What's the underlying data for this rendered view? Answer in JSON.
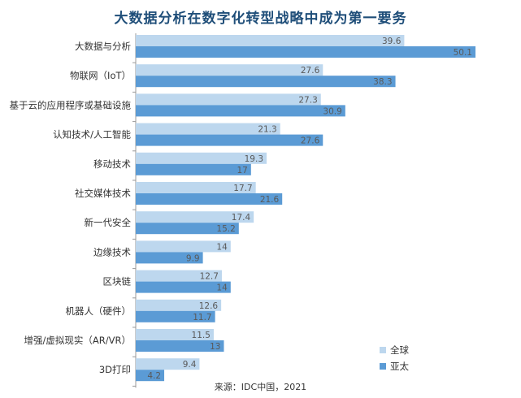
{
  "chart_data": {
    "type": "bar",
    "orientation": "horizontal",
    "title": "大数据分析在数字化转型战略中成为第一要务",
    "source": "来源：IDC中国，2021",
    "categories": [
      "大数据与分析",
      "物联网（IoT）",
      "基于云的应用程序或基础设施",
      "认知技术/人工智能",
      "移动技术",
      "社交媒体技术",
      "新一代安全",
      "边缘技术",
      "区块链",
      "机器人（硬件）",
      "增强/虚拟现实（AR/VR）",
      "3D打印"
    ],
    "series": [
      {
        "name": "全球",
        "color": "#bdd7ee",
        "values": [
          39.6,
          27.6,
          27.3,
          21.3,
          19.3,
          17.7,
          17.4,
          14,
          12.7,
          12.6,
          11.5,
          9.4
        ]
      },
      {
        "name": "亚太",
        "color": "#5b9bd5",
        "values": [
          50.1,
          38.3,
          30.9,
          27.6,
          17,
          21.6,
          15.2,
          9.9,
          14,
          11.7,
          13,
          4.2
        ]
      }
    ],
    "data_label_color": "#595959",
    "axis_color": "#999999",
    "xlim": [
      0,
      50.1
    ],
    "legend_position": "bottom-right"
  }
}
